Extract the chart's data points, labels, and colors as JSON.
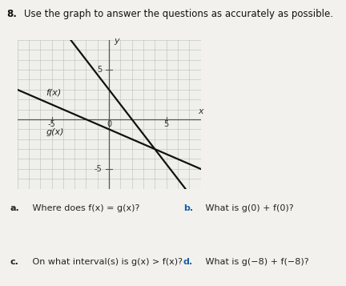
{
  "title_num": "8.",
  "title_text": "Use the graph to answer the questions as accurately as possible.",
  "f_label": "f(x)",
  "g_label": "g(x)",
  "f_slope": -1.5,
  "f_intercept": 3,
  "g_slope": -0.5,
  "g_intercept": -1,
  "x_min": -8,
  "x_max": 8,
  "y_min": -7,
  "y_max": 8,
  "x_ticks": [
    -5,
    0,
    5
  ],
  "y_ticks": [
    -5,
    5
  ],
  "line_color": "#111111",
  "bg_color": "#efefeb",
  "grid_color": "#bbbbbb",
  "axis_color": "#555555",
  "page_bg": "#f2f1ed",
  "q_a_label": "a.",
  "q_a_text": " Where does f(x) = g(x)?",
  "q_b_label": "b.",
  "q_b_text": " What is g(0) + f(0)?",
  "q_c_label": "c.",
  "q_c_text": " On what interval(s) is g(x) > f(x)?",
  "q_d_label": "d.",
  "q_d_text": " What is g(−8) + f(−8)?",
  "label_color_ac": "#222222",
  "label_color_bd": "#1a5fa8"
}
